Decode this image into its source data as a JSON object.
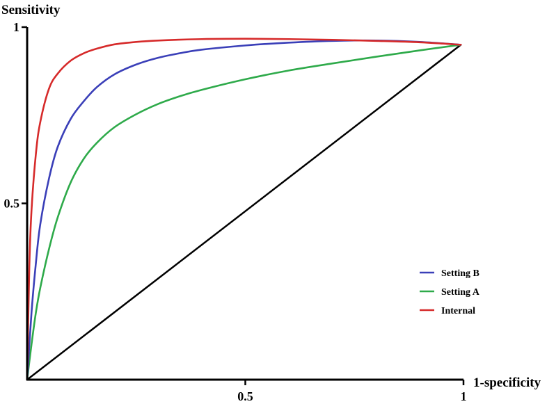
{
  "chart_data": {
    "type": "line",
    "title": "",
    "xlabel": "1-specificity",
    "ylabel": "Sensitivity",
    "xlim": [
      0,
      1
    ],
    "ylim": [
      0,
      1
    ],
    "x_ticks": [
      {
        "value": 0.5,
        "label": "0.5"
      },
      {
        "value": 1,
        "label": "1"
      }
    ],
    "y_ticks": [
      {
        "value": 0.5,
        "label": "0.5"
      },
      {
        "value": 1,
        "label": "1"
      }
    ],
    "grid": false,
    "legend_position": "lower-right",
    "reference_line": {
      "x": [
        0,
        0.994
      ],
      "y": [
        0,
        0.95
      ],
      "color": "#000000"
    },
    "series": [
      {
        "name": "Setting B",
        "color": "#3a3fb8",
        "x": [
          0,
          0.01,
          0.02,
          0.03,
          0.05,
          0.07,
          0.1,
          0.13,
          0.16,
          0.2,
          0.25,
          0.3,
          0.35,
          0.4,
          0.5,
          0.6,
          0.7,
          0.8,
          0.9,
          0.994
        ],
        "y": [
          0,
          0.19,
          0.33,
          0.44,
          0.57,
          0.66,
          0.74,
          0.79,
          0.83,
          0.866,
          0.894,
          0.913,
          0.926,
          0.936,
          0.948,
          0.956,
          0.961,
          0.962,
          0.958,
          0.95
        ]
      },
      {
        "name": "Setting A",
        "color": "#2eaa4a",
        "x": [
          0,
          0.01,
          0.02,
          0.03,
          0.05,
          0.07,
          0.1,
          0.13,
          0.16,
          0.2,
          0.25,
          0.3,
          0.35,
          0.4,
          0.5,
          0.6,
          0.7,
          0.8,
          0.9,
          0.994
        ],
        "y": [
          0,
          0.1,
          0.19,
          0.26,
          0.37,
          0.46,
          0.56,
          0.627,
          0.672,
          0.716,
          0.753,
          0.782,
          0.804,
          0.822,
          0.852,
          0.877,
          0.897,
          0.916,
          0.934,
          0.95
        ]
      },
      {
        "name": "Internal",
        "color": "#d62a2a",
        "x": [
          0,
          0.005,
          0.01,
          0.02,
          0.03,
          0.05,
          0.07,
          0.1,
          0.13,
          0.16,
          0.2,
          0.25,
          0.3,
          0.4,
          0.5,
          0.6,
          0.7,
          0.8,
          0.9,
          0.994
        ],
        "y": [
          0,
          0.32,
          0.48,
          0.64,
          0.73,
          0.825,
          0.868,
          0.905,
          0.926,
          0.939,
          0.951,
          0.958,
          0.962,
          0.966,
          0.967,
          0.966,
          0.964,
          0.961,
          0.957,
          0.95
        ]
      }
    ],
    "legend_order": [
      "Setting B",
      "Setting A",
      "Internal"
    ]
  }
}
